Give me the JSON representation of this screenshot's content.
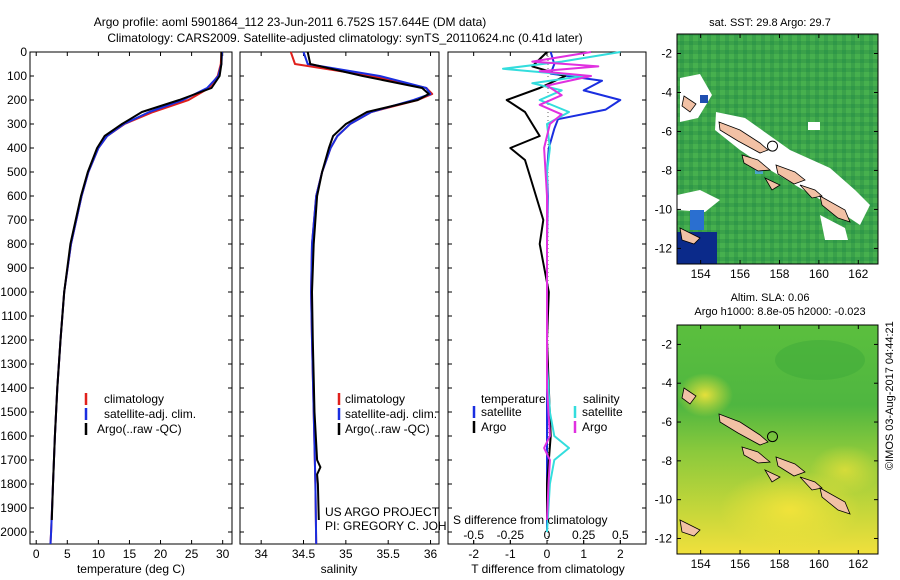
{
  "title": {
    "line1": "Argo profile: aoml 5901864_112 23-Jun-2011 6.752S 157.644E (DM data)",
    "line2": "Climatology: CARS2009. Satellite-adjusted climatology: synTS_20110624.nc (0.41d later)"
  },
  "colors": {
    "climatology": "#e0201c",
    "satellite": "#1a2ee0",
    "argo": "#000000",
    "sat_cyan": "#33dddd",
    "argo_magenta": "#e030e0"
  },
  "chart_data": [
    {
      "type": "line",
      "name": "temperature-panel",
      "xlabel": "temperature (deg C)",
      "xlim": [
        -1,
        31.5
      ],
      "xticks": [
        0,
        5,
        10,
        15,
        20,
        25,
        30
      ],
      "ylim": [
        2050,
        0
      ],
      "yticks": [
        0,
        100,
        200,
        300,
        400,
        500,
        600,
        700,
        800,
        900,
        1000,
        1100,
        1200,
        1300,
        1400,
        1500,
        1600,
        1700,
        1800,
        1900,
        2000
      ],
      "legend": [
        "climatology",
        "satellite-adj. clim.",
        "Argo(..raw -QC)"
      ],
      "series": [
        {
          "name": "climatology",
          "depth": [
            0,
            50,
            100,
            150,
            200,
            250,
            300,
            350,
            400,
            500,
            600,
            800,
            1000,
            1200,
            1400,
            1600,
            1800,
            2000,
            2050
          ],
          "values": [
            29.8,
            29.7,
            29.2,
            27.8,
            24.5,
            18.8,
            14.2,
            11.4,
            10.0,
            8.4,
            7.3,
            5.6,
            4.5,
            3.9,
            3.4,
            3.0,
            2.7,
            2.4,
            2.3
          ]
        },
        {
          "name": "satellite",
          "depth": [
            0,
            50,
            100,
            150,
            200,
            250,
            300,
            350,
            400,
            500,
            600,
            800,
            1000,
            1200,
            1400,
            1600,
            1800,
            2000,
            2050
          ],
          "values": [
            29.9,
            29.8,
            29.3,
            27.5,
            23.6,
            18.2,
            14.1,
            11.4,
            10.0,
            8.4,
            7.3,
            5.6,
            4.5,
            3.9,
            3.4,
            3.0,
            2.7,
            2.4,
            2.3
          ]
        },
        {
          "name": "argo",
          "depth": [
            0,
            50,
            100,
            150,
            200,
            250,
            300,
            350,
            400,
            500,
            600,
            800,
            1000,
            1200,
            1400,
            1600,
            1800,
            1950
          ],
          "values": [
            29.8,
            29.8,
            29.5,
            28.2,
            23.0,
            17.0,
            13.8,
            11.0,
            9.8,
            8.3,
            7.2,
            5.5,
            4.5,
            3.9,
            3.4,
            3.0,
            2.7,
            2.5
          ]
        }
      ]
    },
    {
      "type": "line",
      "name": "salinity-panel",
      "xlabel": "salinity",
      "xlim": [
        33.75,
        36.1
      ],
      "xticks": [
        34,
        34.5,
        35,
        35.5,
        36
      ],
      "ylim": [
        2050,
        0
      ],
      "legend": [
        "climatology",
        "satellite-adj. clim.",
        "Argo(..raw -QC)"
      ],
      "series": [
        {
          "name": "climatology",
          "depth": [
            0,
            50,
            100,
            150,
            175,
            200,
            250,
            300,
            350,
            400,
            500,
            600,
            800,
            1000,
            1200,
            1500,
            1800,
            2050
          ],
          "values": [
            34.35,
            34.4,
            35.3,
            35.95,
            36.02,
            35.85,
            35.3,
            35.05,
            34.9,
            34.82,
            34.72,
            34.65,
            34.6,
            34.59,
            34.6,
            34.62,
            34.64,
            34.65
          ]
        },
        {
          "name": "satellite",
          "depth": [
            0,
            50,
            100,
            150,
            175,
            200,
            250,
            300,
            350,
            400,
            500,
            600,
            800,
            1000,
            1200,
            1500,
            1800,
            2050
          ],
          "values": [
            34.5,
            34.55,
            35.4,
            35.95,
            36.0,
            35.8,
            35.3,
            35.05,
            34.9,
            34.82,
            34.72,
            34.65,
            34.6,
            34.59,
            34.6,
            34.62,
            34.64,
            34.65
          ]
        },
        {
          "name": "argo",
          "depth": [
            0,
            50,
            100,
            150,
            175,
            200,
            250,
            300,
            350,
            400,
            500,
            600,
            800,
            1000,
            1200,
            1500,
            1700,
            1730,
            1760,
            1800,
            1950
          ],
          "values": [
            34.55,
            34.58,
            35.2,
            35.9,
            35.98,
            35.85,
            35.25,
            35.0,
            34.85,
            34.8,
            34.72,
            34.66,
            34.62,
            34.6,
            34.61,
            34.63,
            34.66,
            34.7,
            34.66,
            34.67,
            34.68
          ]
        }
      ]
    },
    {
      "type": "line",
      "name": "difference-panel",
      "xlabel": "T difference from climatology",
      "xlabel_top": "S difference from climatology",
      "xlim": [
        -2.7,
        2.7
      ],
      "xticks": [
        -2,
        -1,
        0,
        1,
        2
      ],
      "xticks_top": [
        "-0.5",
        "-0.25",
        "0",
        "0.25",
        "0.5"
      ],
      "ylim": [
        2050,
        0
      ],
      "legend_headers": [
        "temperature",
        "salinity"
      ],
      "legend": [
        "satellite",
        "Argo",
        "satellite",
        "Argo"
      ],
      "series": [
        {
          "name": "T satellite",
          "depth": [
            0,
            50,
            90,
            120,
            160,
            200,
            240,
            280,
            320,
            400,
            500,
            600,
            800,
            1000,
            1500,
            2000
          ],
          "values": [
            0.1,
            0.2,
            0.1,
            1.5,
            1.0,
            2.0,
            1.6,
            0.3,
            0.2,
            0.05,
            0.0,
            0.02,
            0.0,
            0.0,
            0.0,
            0.0
          ]
        },
        {
          "name": "T argo",
          "depth": [
            0,
            60,
            100,
            150,
            200,
            250,
            300,
            350,
            400,
            450,
            500,
            600,
            700,
            800,
            1000,
            1200,
            1400,
            1600,
            1800,
            1950
          ],
          "values": [
            0.0,
            -0.4,
            0.5,
            -0.2,
            -1.1,
            -0.6,
            -0.4,
            -0.2,
            -1.0,
            -0.6,
            -0.5,
            -0.3,
            -0.1,
            -0.2,
            0.05,
            0.0,
            0.05,
            0.1,
            0.0,
            0.0
          ]
        },
        {
          "name": "S satellite",
          "depth": [
            0,
            40,
            70,
            100,
            130,
            160,
            200,
            250,
            300,
            400,
            500,
            700,
            1000,
            1300,
            1500,
            1600,
            1650,
            1700,
            1800,
            2000
          ],
          "values": [
            0.5,
            0.1,
            -0.3,
            0.25,
            -0.1,
            0.1,
            -0.05,
            0.15,
            0.0,
            0.02,
            0.0,
            0.0,
            0.0,
            0.0,
            0.02,
            0.05,
            0.15,
            0.05,
            0.02,
            0.0
          ]
        },
        {
          "name": "S argo",
          "depth": [
            0,
            40,
            60,
            80,
            100,
            140,
            180,
            220,
            260,
            300,
            400,
            600,
            800,
            1000,
            1400,
            1600,
            1650,
            1700,
            1800,
            1950
          ],
          "values": [
            0.3,
            -0.1,
            0.35,
            -0.05,
            0.3,
            0.0,
            0.1,
            -0.05,
            0.1,
            0.02,
            -0.02,
            0.0,
            0.0,
            0.0,
            0.0,
            0.02,
            -0.02,
            0.02,
            0.01,
            0.0
          ]
        }
      ]
    },
    {
      "type": "heatmap",
      "name": "sst-map",
      "title": "sat. SST: 29.8 Argo: 29.7",
      "xticks": [
        154,
        156,
        158,
        160,
        162
      ],
      "yticks": [
        -2,
        -4,
        -6,
        -8,
        -10,
        -12
      ],
      "xlim": [
        152.8,
        163.0
      ],
      "ylim": [
        -12.8,
        -1.0
      ],
      "marker": {
        "lon": 157.644,
        "lat": -6.752
      }
    },
    {
      "type": "heatmap",
      "name": "sla-map",
      "title_line1": "Altim. SLA: 0.06",
      "title_line2": "Argo h1000: 8.8e-05 h2000: -0.023",
      "xticks": [
        154,
        156,
        158,
        160,
        162
      ],
      "yticks": [
        -2,
        -4,
        -6,
        -8,
        -10,
        -12
      ],
      "xlim": [
        152.8,
        163.0
      ],
      "ylim": [
        -12.8,
        -1.0
      ],
      "marker": {
        "lon": 157.644,
        "lat": -6.752
      }
    }
  ],
  "annotations": {
    "project_line1": "US ARGO PROJECT",
    "project_line2": "PI: GREGORY C. JOHNSON",
    "credit": "©IMOS 03-Aug-2017 04:44:21"
  }
}
